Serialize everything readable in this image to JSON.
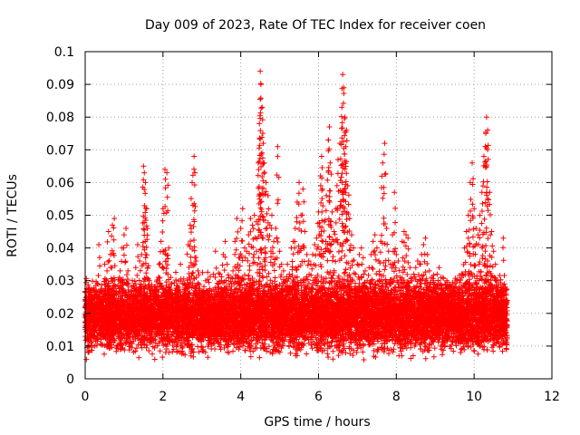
{
  "chart_data": {
    "type": "scatter",
    "title": "Day 009 of 2023, Rate Of TEC Index for receiver coen",
    "xlabel": "GPS time / hours",
    "ylabel": "ROTI / TECUs",
    "xlim": [
      0,
      12
    ],
    "ylim": [
      0,
      0.1
    ],
    "x_ticks": [
      0,
      2,
      4,
      6,
      8,
      10,
      12
    ],
    "x_tick_labels": [
      "0",
      "2",
      "4",
      "6",
      "8",
      "10",
      "12"
    ],
    "y_ticks": [
      0,
      0.01,
      0.02,
      0.03,
      0.04,
      0.05,
      0.06,
      0.07,
      0.08,
      0.09,
      0.1
    ],
    "y_tick_labels": [
      "0",
      "0.01",
      "0.02",
      "0.03",
      "0.04",
      "0.05",
      "0.06",
      "0.07",
      "0.08",
      "0.09",
      "0.1"
    ],
    "grid": true,
    "marker": "+",
    "marker_color": "#ff0000",
    "data_range_x": [
      0,
      10.85
    ],
    "series": [
      {
        "name": "ROTI",
        "points": [
          [
            0.05,
            0.012
          ],
          [
            0.1,
            0.026
          ],
          [
            0.15,
            0.018
          ],
          [
            0.2,
            0.027
          ],
          [
            0.25,
            0.01
          ],
          [
            0.3,
            0.022
          ],
          [
            0.35,
            0.041
          ],
          [
            0.4,
            0.015
          ],
          [
            0.45,
            0.019
          ],
          [
            0.5,
            0.035
          ],
          [
            0.55,
            0.03
          ],
          [
            0.6,
            0.045
          ],
          [
            0.65,
            0.038
          ],
          [
            0.7,
            0.047
          ],
          [
            0.75,
            0.049
          ],
          [
            0.8,
            0.02
          ],
          [
            0.85,
            0.026
          ],
          [
            0.9,
            0.033
          ],
          [
            0.95,
            0.04
          ],
          [
            1.0,
            0.044
          ],
          [
            1.05,
            0.046
          ],
          [
            1.1,
            0.033
          ],
          [
            1.15,
            0.021
          ],
          [
            1.2,
            0.018
          ],
          [
            1.25,
            0.027
          ],
          [
            1.3,
            0.034
          ],
          [
            1.35,
            0.041
          ],
          [
            1.4,
            0.036
          ],
          [
            1.45,
            0.038
          ],
          [
            1.5,
            0.065
          ],
          [
            1.52,
            0.063
          ],
          [
            1.55,
            0.06
          ],
          [
            1.58,
            0.052
          ],
          [
            1.6,
            0.046
          ],
          [
            1.65,
            0.03
          ],
          [
            1.7,
            0.024
          ],
          [
            1.75,
            0.016
          ],
          [
            1.8,
            0.02
          ],
          [
            1.85,
            0.028
          ],
          [
            1.9,
            0.035
          ],
          [
            1.95,
            0.042
          ],
          [
            2.0,
            0.052
          ],
          [
            2.05,
            0.064
          ],
          [
            2.1,
            0.063
          ],
          [
            2.15,
            0.04
          ],
          [
            2.2,
            0.031
          ],
          [
            2.25,
            0.023
          ],
          [
            2.3,
            0.016
          ],
          [
            2.35,
            0.025
          ],
          [
            2.4,
            0.028
          ],
          [
            2.45,
            0.035
          ],
          [
            2.5,
            0.029
          ],
          [
            2.55,
            0.018
          ],
          [
            2.6,
            0.022
          ],
          [
            2.65,
            0.041
          ],
          [
            2.7,
            0.047
          ],
          [
            2.75,
            0.06
          ],
          [
            2.8,
            0.068
          ],
          [
            2.82,
            0.063
          ],
          [
            2.85,
            0.036
          ],
          [
            2.9,
            0.033
          ],
          [
            2.95,
            0.024
          ],
          [
            3.0,
            0.019
          ],
          [
            3.05,
            0.027
          ],
          [
            3.1,
            0.03
          ],
          [
            3.15,
            0.015
          ],
          [
            3.2,
            0.022
          ],
          [
            3.25,
            0.026
          ],
          [
            3.3,
            0.032
          ],
          [
            3.35,
            0.039
          ],
          [
            3.4,
            0.028
          ],
          [
            3.45,
            0.023
          ],
          [
            3.5,
            0.03
          ],
          [
            3.55,
            0.038
          ],
          [
            3.6,
            0.042
          ],
          [
            3.65,
            0.035
          ],
          [
            3.7,
            0.029
          ],
          [
            3.75,
            0.031
          ],
          [
            3.8,
            0.033
          ],
          [
            3.85,
            0.042
          ],
          [
            3.9,
            0.049
          ],
          [
            3.95,
            0.037
          ],
          [
            4.0,
            0.046
          ],
          [
            4.05,
            0.052
          ],
          [
            4.1,
            0.04
          ],
          [
            4.15,
            0.039
          ],
          [
            4.2,
            0.044
          ],
          [
            4.25,
            0.049
          ],
          [
            4.3,
            0.047
          ],
          [
            4.35,
            0.05
          ],
          [
            4.4,
            0.048
          ],
          [
            4.45,
            0.066
          ],
          [
            4.48,
            0.078
          ],
          [
            4.5,
            0.094
          ],
          [
            4.52,
            0.09
          ],
          [
            4.55,
            0.083
          ],
          [
            4.58,
            0.072
          ],
          [
            4.6,
            0.066
          ],
          [
            4.65,
            0.06
          ],
          [
            4.7,
            0.056
          ],
          [
            4.75,
            0.047
          ],
          [
            4.8,
            0.05
          ],
          [
            4.85,
            0.042
          ],
          [
            4.9,
            0.046
          ],
          [
            4.95,
            0.071
          ],
          [
            5.0,
            0.039
          ],
          [
            5.05,
            0.035
          ],
          [
            5.1,
            0.033
          ],
          [
            5.15,
            0.03
          ],
          [
            5.2,
            0.035
          ],
          [
            5.25,
            0.032
          ],
          [
            5.3,
            0.04
          ],
          [
            5.35,
            0.042
          ],
          [
            5.4,
            0.046
          ],
          [
            5.45,
            0.054
          ],
          [
            5.5,
            0.06
          ],
          [
            5.55,
            0.05
          ],
          [
            5.6,
            0.058
          ],
          [
            5.65,
            0.045
          ],
          [
            5.7,
            0.038
          ],
          [
            5.75,
            0.036
          ],
          [
            5.8,
            0.035
          ],
          [
            5.85,
            0.038
          ],
          [
            5.9,
            0.041
          ],
          [
            5.95,
            0.043
          ],
          [
            6.0,
            0.051
          ],
          [
            6.05,
            0.062
          ],
          [
            6.08,
            0.068
          ],
          [
            6.1,
            0.058
          ],
          [
            6.15,
            0.048
          ],
          [
            6.2,
            0.056
          ],
          [
            6.25,
            0.073
          ],
          [
            6.28,
            0.077
          ],
          [
            6.3,
            0.066
          ],
          [
            6.35,
            0.051
          ],
          [
            6.4,
            0.045
          ],
          [
            6.45,
            0.052
          ],
          [
            6.5,
            0.067
          ],
          [
            6.55,
            0.072
          ],
          [
            6.6,
            0.083
          ],
          [
            6.62,
            0.093
          ],
          [
            6.65,
            0.089
          ],
          [
            6.68,
            0.08
          ],
          [
            6.7,
            0.071
          ],
          [
            6.72,
            0.076
          ],
          [
            6.75,
            0.059
          ],
          [
            6.8,
            0.049
          ],
          [
            6.85,
            0.044
          ],
          [
            6.9,
            0.04
          ],
          [
            6.95,
            0.032
          ],
          [
            7.0,
            0.035
          ],
          [
            7.05,
            0.038
          ],
          [
            7.1,
            0.04
          ],
          [
            7.15,
            0.037
          ],
          [
            7.2,
            0.033
          ],
          [
            7.25,
            0.03
          ],
          [
            7.3,
            0.034
          ],
          [
            7.35,
            0.038
          ],
          [
            7.4,
            0.042
          ],
          [
            7.45,
            0.044
          ],
          [
            7.5,
            0.04
          ],
          [
            7.55,
            0.036
          ],
          [
            7.6,
            0.042
          ],
          [
            7.65,
            0.066
          ],
          [
            7.7,
            0.072
          ],
          [
            7.75,
            0.046
          ],
          [
            7.8,
            0.039
          ],
          [
            7.85,
            0.035
          ],
          [
            7.9,
            0.044
          ],
          [
            7.95,
            0.057
          ],
          [
            8.0,
            0.038
          ],
          [
            8.05,
            0.036
          ],
          [
            8.1,
            0.031
          ],
          [
            8.15,
            0.042
          ],
          [
            8.2,
            0.045
          ],
          [
            8.25,
            0.044
          ],
          [
            8.3,
            0.043
          ],
          [
            8.35,
            0.034
          ],
          [
            8.4,
            0.03
          ],
          [
            8.45,
            0.032
          ],
          [
            8.5,
            0.034
          ],
          [
            8.55,
            0.036
          ],
          [
            8.6,
            0.035
          ],
          [
            8.65,
            0.038
          ],
          [
            8.7,
            0.041
          ],
          [
            8.75,
            0.043
          ],
          [
            8.8,
            0.038
          ],
          [
            8.85,
            0.033
          ],
          [
            8.9,
            0.031
          ],
          [
            8.95,
            0.03
          ],
          [
            9.0,
            0.028
          ],
          [
            9.05,
            0.032
          ],
          [
            9.1,
            0.034
          ],
          [
            9.15,
            0.031
          ],
          [
            9.2,
            0.027
          ],
          [
            9.25,
            0.026
          ],
          [
            9.3,
            0.03
          ],
          [
            9.35,
            0.025
          ],
          [
            9.4,
            0.023
          ],
          [
            9.45,
            0.022
          ],
          [
            9.5,
            0.026
          ],
          [
            9.55,
            0.03
          ],
          [
            9.6,
            0.022
          ],
          [
            9.65,
            0.024
          ],
          [
            9.7,
            0.032
          ],
          [
            9.75,
            0.04
          ],
          [
            9.8,
            0.045
          ],
          [
            9.85,
            0.05
          ],
          [
            9.9,
            0.06
          ],
          [
            9.95,
            0.066
          ],
          [
            10.0,
            0.052
          ],
          [
            10.05,
            0.046
          ],
          [
            10.1,
            0.044
          ],
          [
            10.15,
            0.05
          ],
          [
            10.2,
            0.057
          ],
          [
            10.25,
            0.068
          ],
          [
            10.3,
            0.075
          ],
          [
            10.32,
            0.08
          ],
          [
            10.35,
            0.076
          ],
          [
            10.4,
            0.057
          ],
          [
            10.45,
            0.045
          ],
          [
            10.5,
            0.039
          ],
          [
            10.55,
            0.035
          ],
          [
            10.6,
            0.03
          ],
          [
            10.65,
            0.026
          ],
          [
            10.7,
            0.028
          ],
          [
            10.75,
            0.043
          ],
          [
            10.8,
            0.028
          ],
          [
            10.85,
            0.024
          ]
        ]
      }
    ],
    "background_density": {
      "description": "dense cloud of points between roughly 0.005 and 0.03 across the full 0 to 10.85 hour range",
      "baseline_low": 0.005,
      "baseline_high": 0.03,
      "points_per_hour": 1000
    }
  }
}
